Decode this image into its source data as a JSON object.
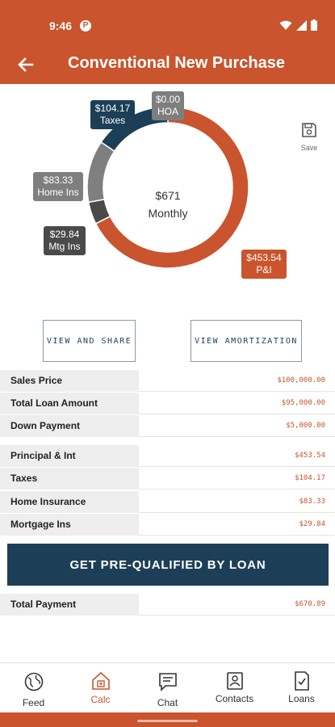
{
  "status_bar": {
    "time": "9:46",
    "app_icon": "P"
  },
  "header": {
    "title": "Conventional New Purchase",
    "back_icon": "arrow-left-icon"
  },
  "colors": {
    "brand": "#c9542d",
    "navy": "#1c3f57",
    "gray_light": "#7f7f7f",
    "gray_dark": "#4a4a4a"
  },
  "chart_data": {
    "type": "pie",
    "style": "donut",
    "center": {
      "amount": "$671",
      "label": "Monthly"
    },
    "slices": [
      {
        "label": "P&I",
        "value": 453.54,
        "display": "$453.54",
        "color": "#c9542d"
      },
      {
        "label": "Mtg Ins",
        "value": 29.84,
        "display": "$29.84",
        "color": "#4a4a4a"
      },
      {
        "label": "Home Ins",
        "value": 83.33,
        "display": "$83.33",
        "color": "#7f7f7f"
      },
      {
        "label": "Taxes",
        "value": 104.17,
        "display": "$104.17",
        "color": "#1c3f57"
      },
      {
        "label": "HOA",
        "value": 0.0,
        "display": "$0.00",
        "color": "#8c8c8c"
      }
    ]
  },
  "save": {
    "label": "Save",
    "icon": "floppy-disk-icon"
  },
  "buttons": {
    "share": "VIEW AND SHARE",
    "amortization": "VIEW AMORTIZATION",
    "prequal": "GET PRE-QUALIFIED BY LOAN"
  },
  "loan_table": [
    {
      "label": "Sales Price",
      "value": "$100,000.00"
    },
    {
      "label": "Total Loan Amount",
      "value": "$95,000.00"
    },
    {
      "label": "Down Payment",
      "value": "$5,000.00"
    }
  ],
  "payment_table": [
    {
      "label": "Principal & Int",
      "value": "$453.54"
    },
    {
      "label": "Taxes",
      "value": "$104.17"
    },
    {
      "label": "Home Insurance",
      "value": "$83.33"
    },
    {
      "label": "Mortgage Ins",
      "value": "$29.84"
    }
  ],
  "total": {
    "label": "Total Payment",
    "value": "$670.89"
  },
  "nav": [
    {
      "label": "Feed",
      "icon": "globe-icon",
      "active": false
    },
    {
      "label": "Calc",
      "icon": "calculator-home-icon",
      "active": true
    },
    {
      "label": "Chat",
      "icon": "chat-icon",
      "active": false
    },
    {
      "label": "Contacts",
      "icon": "contacts-icon",
      "active": false
    },
    {
      "label": "Loans",
      "icon": "document-check-icon",
      "active": false
    }
  ]
}
